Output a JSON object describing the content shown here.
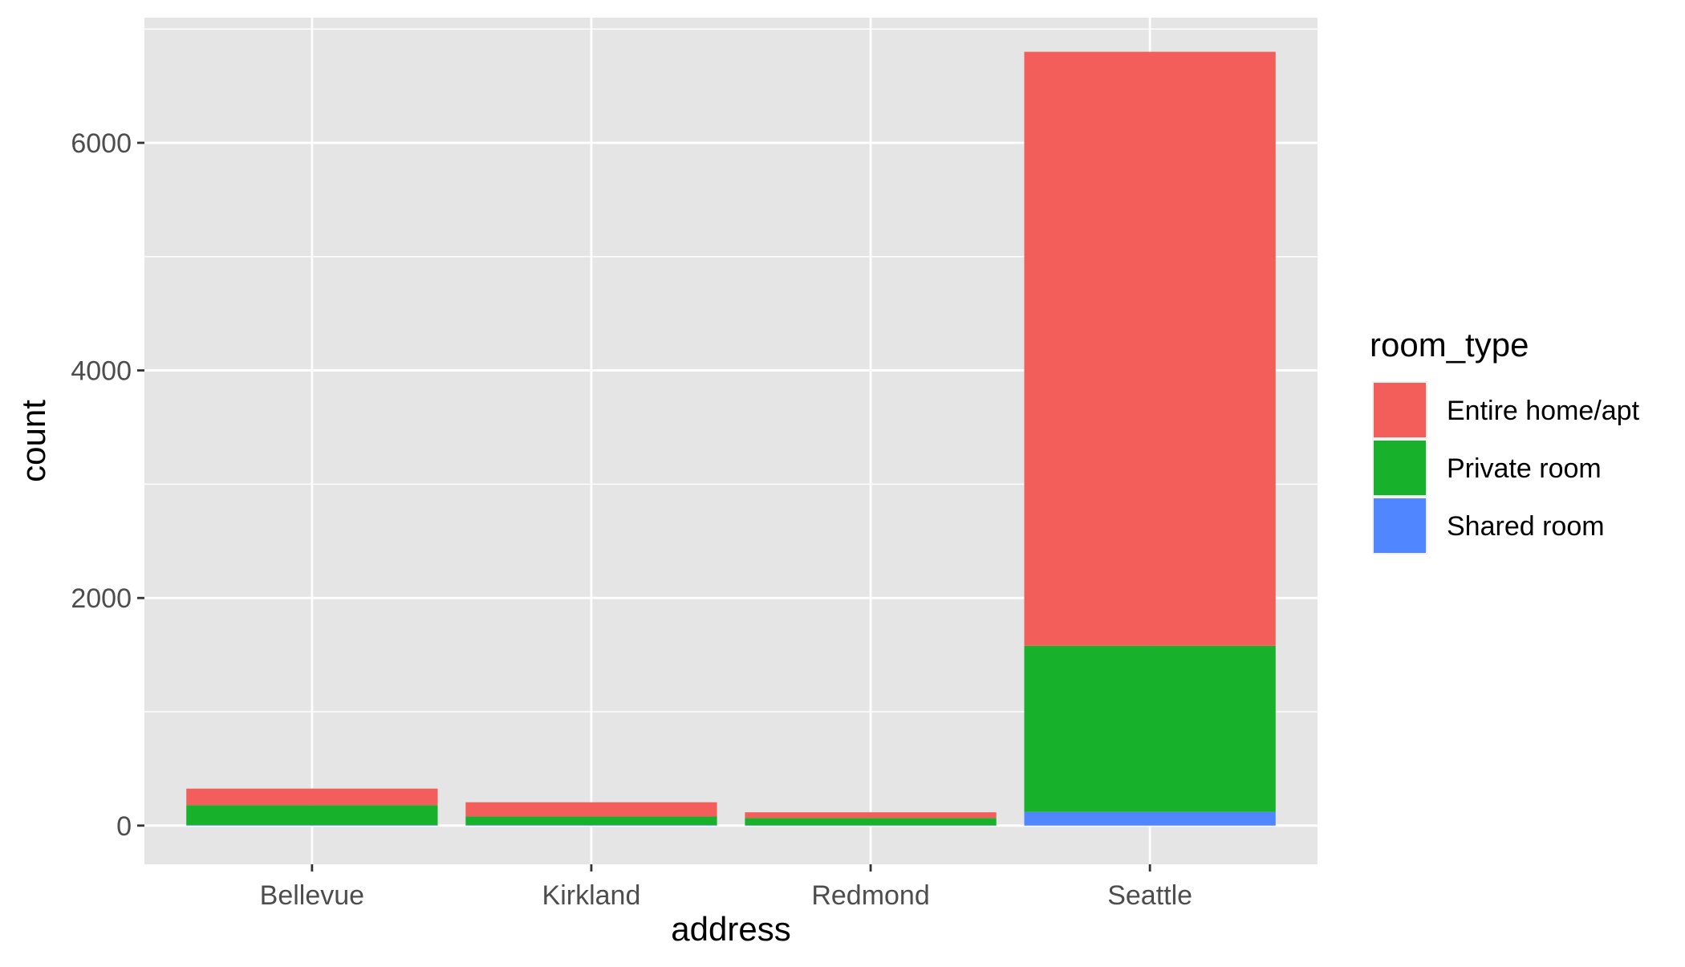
{
  "chart_data": {
    "type": "bar",
    "stacked": true,
    "categories": [
      "Bellevue",
      "Kirkland",
      "Redmond",
      "Seattle"
    ],
    "series": [
      {
        "name": "Entire home/apt",
        "color": "#F35E5A",
        "values": [
          145,
          125,
          50,
          5220
        ]
      },
      {
        "name": "Private room",
        "color": "#17B12B",
        "values": [
          175,
          75,
          65,
          1460
        ]
      },
      {
        "name": "Shared room",
        "color": "#5086FF",
        "values": [
          5,
          5,
          2,
          120
        ]
      }
    ],
    "stack_order": [
      "Shared room",
      "Private room",
      "Entire home/apt"
    ],
    "xlabel": "address",
    "ylabel": "count",
    "ylim": [
      -340,
      7100
    ],
    "yticks": [
      0,
      2000,
      4000,
      6000
    ],
    "ytick_labels": [
      "0",
      "2000",
      "4000",
      "6000"
    ],
    "grid": true,
    "legend": {
      "title": "room_type",
      "placement": "right",
      "entries": [
        "Entire home/apt",
        "Private room",
        "Shared room"
      ]
    },
    "panel_background": "#E5E5E5",
    "grid_color": "#FFFFFF"
  }
}
